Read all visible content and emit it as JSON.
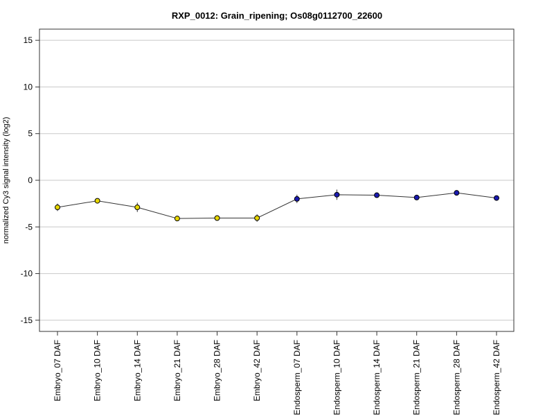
{
  "chart_data": {
    "type": "line",
    "title": "RXP_0012: Grain_ripening; Os08g0112700_22600",
    "ylabel": "normalized Cy3 signal intensity (log2)",
    "xlabel": "",
    "ylim": [
      -16.2,
      16.2
    ],
    "yticks": [
      -15,
      -10,
      -5,
      0,
      5,
      10,
      15
    ],
    "grid": true,
    "categories": [
      "Embryo_07 DAF",
      "Embryo_10 DAF",
      "Embryo_14 DAF",
      "Embryo_21 DAF",
      "Embryo_28 DAF",
      "Embryo_42 DAF",
      "Endosperm_07 DAF",
      "Endosperm_10 DAF",
      "Endosperm_14 DAF",
      "Endosperm_21 DAF",
      "Endosperm_28 DAF",
      "Endosperm_42 DAF"
    ],
    "values": [
      -2.9,
      -2.2,
      -2.9,
      -4.1,
      -4.05,
      -4.05,
      -2.0,
      -1.55,
      -1.6,
      -1.85,
      -1.35,
      -1.9
    ],
    "error": [
      0.4,
      0.25,
      0.5,
      0.15,
      0.15,
      0.4,
      0.45,
      0.55,
      0.2,
      0.25,
      0.15,
      0.15
    ],
    "point_colors": [
      "#e6d600",
      "#e6d600",
      "#e6d600",
      "#e6d600",
      "#e6d600",
      "#e6d600",
      "#1a1ab0",
      "#1a1ab0",
      "#1a1ab0",
      "#1a1ab0",
      "#1a1ab0",
      "#1a1ab0"
    ],
    "line_color": "#333333",
    "grid_color": "#c8c8c8"
  }
}
